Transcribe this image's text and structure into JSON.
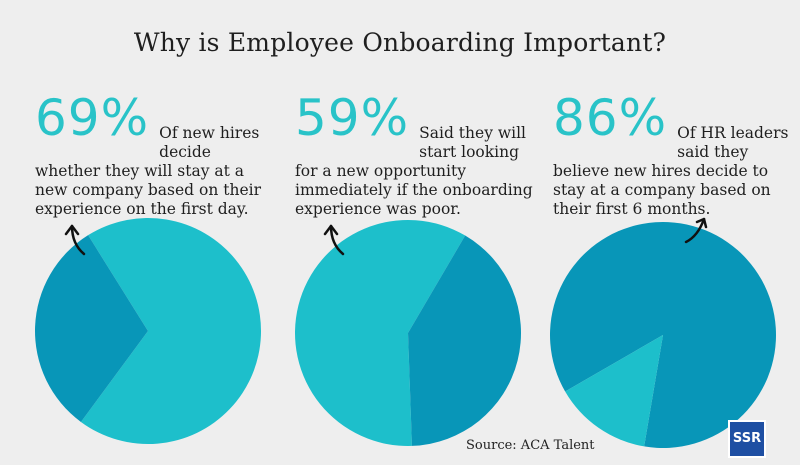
{
  "title": "Why is Employee Onboarding Important?",
  "colors": {
    "accent": "#29c3c8",
    "light_slice": "#1dbfcb",
    "dark_slice": "#0896b8",
    "logo": "#1e4fa3"
  },
  "stats": [
    {
      "value": "69%",
      "text": "Of new hires decide whether they will stay at a new company based on their experience on the first day."
    },
    {
      "value": "59%",
      "text": "Said they will start looking for a new opportunity immediately if the onboarding experience was poor."
    },
    {
      "value": "86%",
      "text": "Of HR leaders said they believe new hires decide to stay at a company based on their first 6 months."
    }
  ],
  "source": "Source: ACA Talent",
  "logo_text": "SSR",
  "chart_data": [
    {
      "type": "pie",
      "title": "",
      "values": [
        69,
        31
      ],
      "colors": [
        "#1dbfcb",
        "#0896b8"
      ]
    },
    {
      "type": "pie",
      "title": "",
      "values": [
        59,
        41
      ],
      "colors": [
        "#1dbfcb",
        "#0896b8"
      ]
    },
    {
      "type": "pie",
      "title": "",
      "values": [
        86,
        14
      ],
      "colors": [
        "#0896b8",
        "#1dbfcb"
      ]
    }
  ]
}
